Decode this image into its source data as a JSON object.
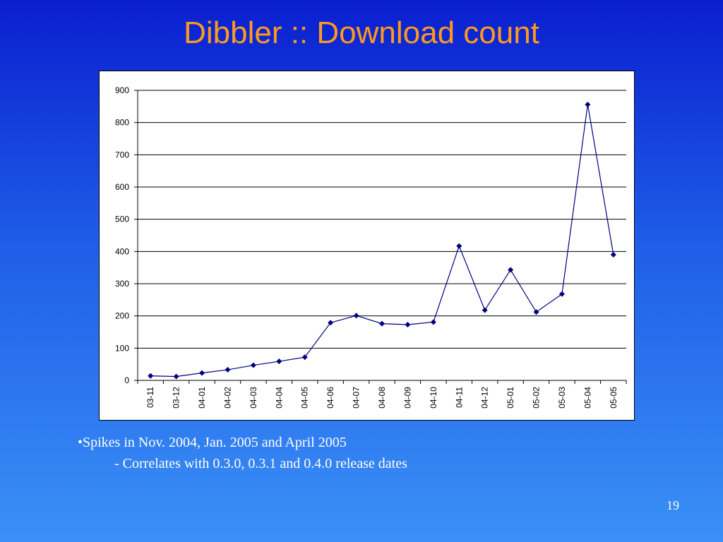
{
  "slide": {
    "title": "Dibbler :: Download count",
    "bullets": [
      "•Spikes in Nov. 2004, Jan. 2005 and April 2005",
      "- Correlates with 0.3.0, 0.3.1 and 0.4.0 release dates"
    ],
    "page_number": "19"
  },
  "chart_data": {
    "type": "line",
    "categories": [
      "03-11",
      "03-12",
      "04-01",
      "04-02",
      "04-03",
      "04-04",
      "04-05",
      "04-06",
      "04-07",
      "04-08",
      "04-09",
      "04-10",
      "04-11",
      "04-12",
      "05-01",
      "05-02",
      "05-03",
      "05-04",
      "05-05"
    ],
    "values": [
      14,
      12,
      23,
      33,
      47,
      59,
      72,
      179,
      201,
      176,
      173,
      181,
      417,
      218,
      343,
      212,
      268,
      856,
      390
    ],
    "ylim": [
      0,
      900
    ],
    "yticks": [
      0,
      100,
      200,
      300,
      400,
      500,
      600,
      700,
      800,
      900
    ],
    "grid": true,
    "legend": "none",
    "colors": {
      "line": "#000080",
      "marker": "#000080",
      "grid": "#000000"
    }
  }
}
